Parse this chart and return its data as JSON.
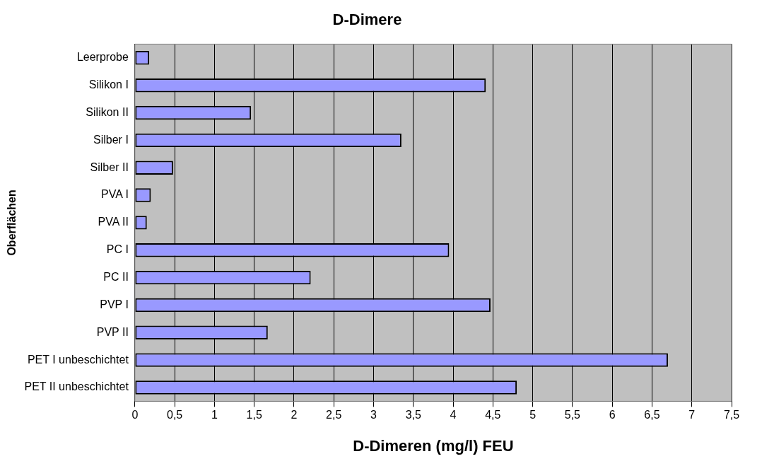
{
  "chart_data": {
    "type": "bar",
    "orientation": "horizontal",
    "title": "D-Dimere",
    "xlabel": "D-Dimeren (mg/l) FEU",
    "ylabel": "Oberflächen",
    "categories": [
      "Leerprobe",
      "Silikon I",
      "Silikon II",
      "Silber I",
      "Silber II",
      "PVA I",
      "PVA II",
      "PC I",
      "PC II",
      "PVP I",
      "PVP II",
      "PET I unbeschichtet",
      "PET II unbeschichtet"
    ],
    "values": [
      0.18,
      4.41,
      1.46,
      3.35,
      0.48,
      0.2,
      0.15,
      3.95,
      2.21,
      4.47,
      1.67,
      6.7,
      4.8
    ],
    "color": "#9999ff",
    "xlim": [
      0,
      7.5
    ],
    "xticks": [
      0,
      {
        "value": 0.5,
        "label": "0,5"
      },
      1,
      {
        "value": 1.5,
        "label": "1,5"
      },
      2,
      {
        "value": 2.5,
        "label": "2,5"
      },
      3,
      {
        "value": 3.5,
        "label": "3,5"
      },
      4,
      {
        "value": 4.5,
        "label": "4,5"
      },
      5,
      {
        "value": 5.5,
        "label": "5,5"
      },
      6,
      {
        "value": 6.5,
        "label": "6,5"
      },
      7,
      {
        "value": 7.5,
        "label": "7,5"
      }
    ],
    "grid": "x",
    "legend": false
  }
}
